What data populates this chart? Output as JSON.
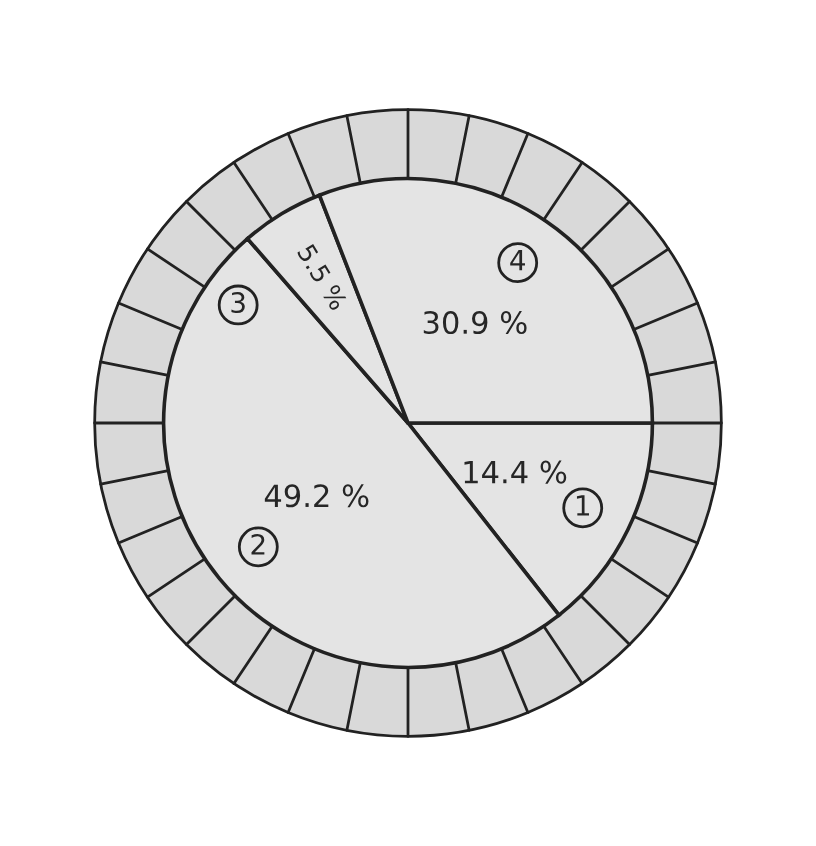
{
  "chart_data": {
    "type": "pie",
    "categories": [
      "1",
      "2",
      "3",
      "4"
    ],
    "values": [
      14.4,
      49.2,
      5.5,
      30.9
    ],
    "value_labels": [
      "14.4 %",
      "49.2 %",
      "5.5 %",
      "30.9 %"
    ],
    "colors": [
      "#e4e4e4",
      "#e4e4e4",
      "#e4e4e4",
      "#e4e4e4"
    ]
  }
}
